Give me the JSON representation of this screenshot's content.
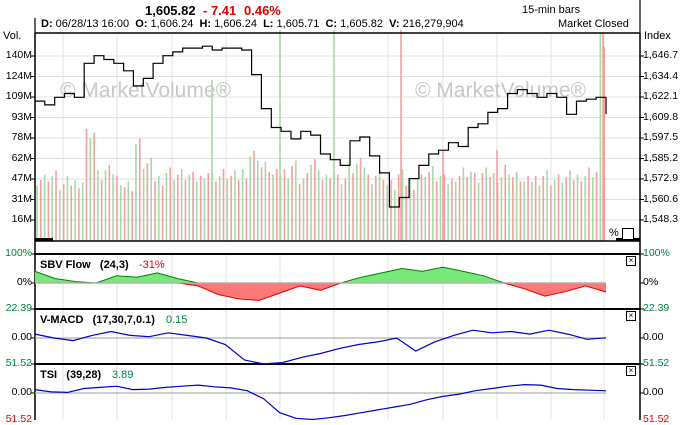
{
  "header": {
    "price": "1,605.82",
    "change": "- 7.41",
    "change_pct": "0.46%",
    "bar_interval": "15-min bars",
    "market_status": "Market Closed",
    "ohlc": {
      "date_label": "D:",
      "date": "06/28/13 16:00",
      "open_label": "O:",
      "open": "1,606.24",
      "high_label": "H:",
      "high": "1,606.24",
      "low_label": "L:",
      "low": "1,605.71",
      "close_label": "C:",
      "close": "1,605.82",
      "volume_label": "V:",
      "volume": "216,279,904"
    }
  },
  "main_panel": {
    "left_axis_title": "Vol.",
    "right_axis_title": "Index",
    "volume_ticks": [
      "140M",
      "124M",
      "109M",
      "93M",
      "78M",
      "62M",
      "47M",
      "31M",
      "16M"
    ],
    "index_ticks": [
      "1,646.7",
      "1,634.4",
      "1,622.1",
      "1,609.8",
      "1,597.5",
      "1,585.2",
      "1,572.9",
      "1,560.6",
      "1,548.3"
    ],
    "watermark": "© MarketVolume®",
    "percent_toggle_label": "%"
  },
  "indicators": [
    {
      "name": "SBV Flow",
      "params": "(24,3)",
      "value": "-31%",
      "value_color": "#e00000",
      "axis_top": "100%",
      "axis_mid": "0%"
    },
    {
      "name": "V-MACD",
      "params": "(17,30,7,0.1)",
      "value": "0.15",
      "value_color": "#008040",
      "axis_top": "22.39",
      "axis_mid": "0.00"
    },
    {
      "name": "TSI",
      "params": "(39,28)",
      "value": "3.89",
      "value_color": "#008040",
      "axis_top": "51.52",
      "axis_mid": "0.00",
      "axis_bottom": "-51.52"
    }
  ],
  "colors": {
    "up_volume": "#a8d8a8",
    "down_volume": "#f4a0a0",
    "price_line": "#000000",
    "sbv_positive": "#78e878",
    "sbv_positive_line": "#008000",
    "sbv_negative": "#ff7878",
    "sbv_negative_line": "#e00000",
    "oscillator_line": "#0000cc",
    "grid": "#e0e0e0",
    "axis_label_green": "#008040"
  },
  "chart_data": {
    "type": "line",
    "title": "15-min bars, 06/28/13 16:00",
    "xlabel": "",
    "ylabel": "Index",
    "ylim": [
      1542,
      1652
    ],
    "y2label": "Vol.",
    "y2lim": [
      0,
      150000000
    ],
    "grid": true,
    "series": [
      {
        "name": "Index (close, approx.)",
        "values": [
          1616,
          1614,
          1618,
          1620,
          1618,
          1636,
          1640,
          1638,
          1636,
          1632,
          1624,
          1628,
          1636,
          1640,
          1642,
          1644,
          1644,
          1645,
          1643,
          1644,
          1644,
          1643,
          1630,
          1612,
          1602,
          1600,
          1596,
          1600,
          1598,
          1588,
          1585,
          1582,
          1595,
          1597,
          1587,
          1578,
          1560,
          1565,
          1575,
          1582,
          1588,
          1590,
          1594,
          1592,
          1602,
          1604,
          1610,
          1612,
          1620,
          1622,
          1620,
          1618,
          1620,
          1618,
          1609,
          1616,
          1617,
          1618,
          1609
        ]
      },
      {
        "name": "Volume (approx., M)",
        "values": [
          45,
          47,
          40,
          42,
          43,
          78,
          47,
          50,
          45,
          40,
          70,
          55,
          45,
          50,
          48,
          47,
          45,
          50,
          47,
          48,
          46,
          50,
          62,
          53,
          47,
          50,
          55,
          45,
          58,
          46,
          50,
          45,
          52,
          55,
          46,
          48,
          40,
          47,
          42,
          45,
          50,
          46,
          43,
          48,
          50,
          45,
          48,
          47,
          52,
          46,
          42,
          45,
          48,
          44,
          45,
          46,
          48,
          50,
          216
        ]
      },
      {
        "name": "SBV Flow (%)",
        "values": [
          40,
          15,
          5,
          0,
          25,
          20,
          35,
          15,
          -10,
          -40,
          -55,
          -60,
          -35,
          -10,
          -25,
          0,
          20,
          35,
          50,
          40,
          55,
          40,
          25,
          0,
          -20,
          -45,
          -30,
          -10,
          -31
        ]
      },
      {
        "name": "V-MACD",
        "values": [
          3,
          0,
          -2,
          2,
          5,
          2,
          1,
          4,
          2,
          0,
          -5,
          -17,
          -20,
          -19,
          -15,
          -12,
          -8,
          -5,
          -3,
          0,
          -10,
          -3,
          2,
          6,
          4,
          5,
          3,
          6,
          3,
          -1,
          0.15
        ]
      },
      {
        "name": "TSI",
        "values": [
          6,
          2,
          1,
          8,
          10,
          12,
          6,
          7,
          10,
          12,
          14,
          11,
          9,
          4,
          -10,
          -35,
          -45,
          -47,
          -44,
          -40,
          -35,
          -30,
          -25,
          -20,
          -12,
          -6,
          -2,
          4,
          8,
          12,
          15,
          14,
          8,
          6,
          5,
          3.89
        ]
      }
    ]
  }
}
